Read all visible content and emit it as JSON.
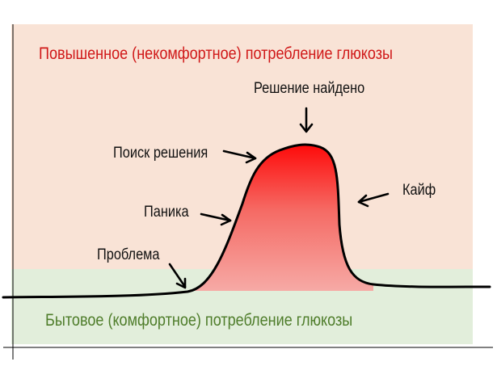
{
  "colors": {
    "high_zone_bg": "#f9e3d6",
    "normal_zone_bg": "#e2eedb",
    "high_zone_text": "#d01818",
    "normal_zone_text": "#4f7d2b",
    "curve": "#000000",
    "peak_fill_top": "#ff0000",
    "peak_fill_bottom": "#f6b0ac",
    "label_text": "#111111"
  },
  "zones": {
    "high": {
      "title": "Повышенное (некомфортное) потребление глюкозы"
    },
    "normal": {
      "title": "Бытовое (комфортное) потребление глюкозы"
    }
  },
  "labels": {
    "problem": "Проблема",
    "panic": "Паника",
    "search": "Поиск решения",
    "decision": "Решение найдено",
    "bliss": "Кайф"
  },
  "icons": {
    "arrow_decision": "arrow-down-icon",
    "arrow_search": "arrow-right-icon",
    "arrow_panic": "arrow-right-icon",
    "arrow_problem": "arrow-down-right-icon",
    "arrow_bliss": "arrow-left-icon"
  }
}
